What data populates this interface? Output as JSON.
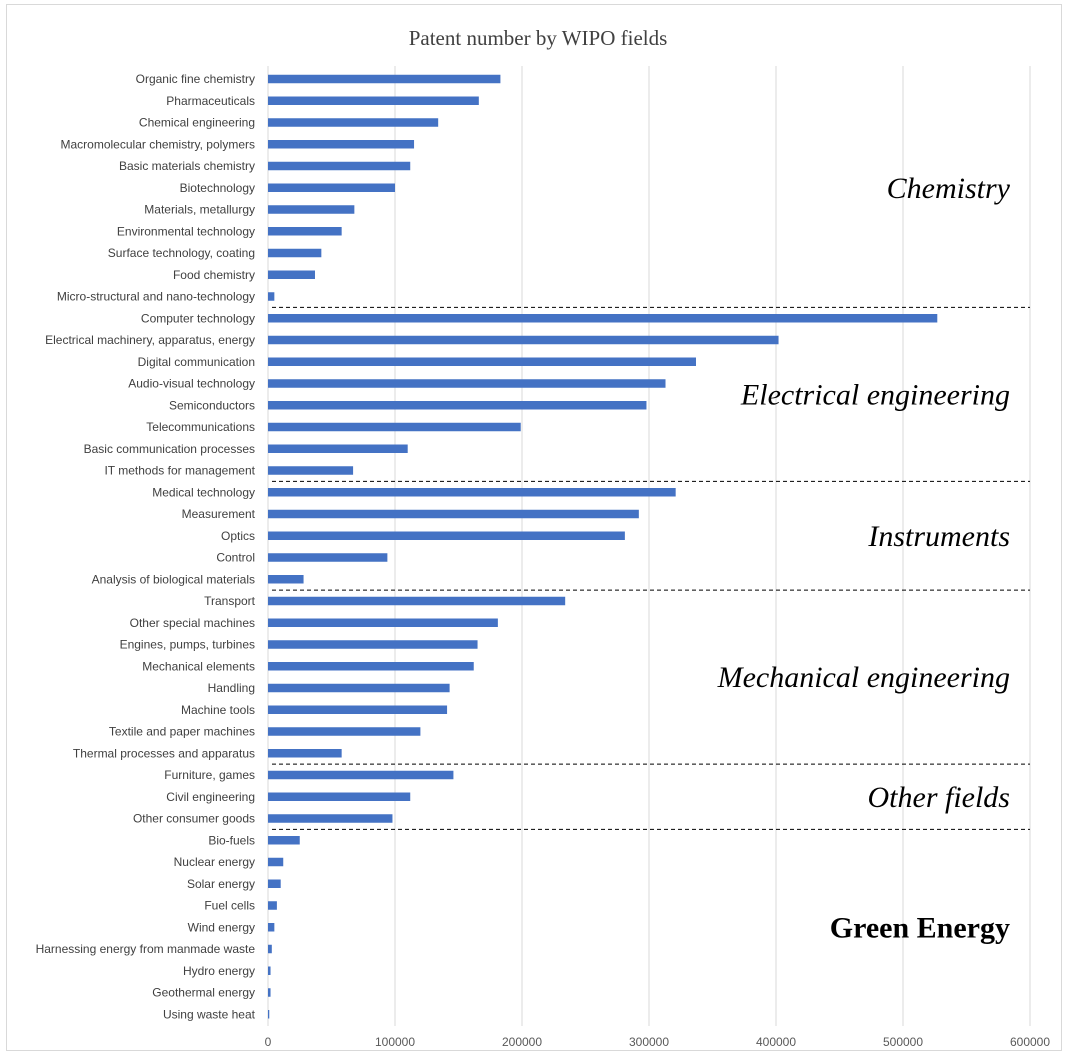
{
  "chart_data": {
    "type": "bar",
    "orientation": "horizontal",
    "title": "Patent number by WIPO fields",
    "xlim": [
      0,
      600000
    ],
    "x_ticks": [
      "0",
      "100000",
      "200000",
      "300000",
      "400000",
      "500000",
      "600000"
    ],
    "grid": "vertical",
    "bar_color": "#4472c4",
    "categories": [
      "Organic fine chemistry",
      "Pharmaceuticals",
      "Chemical engineering",
      "Macromolecular chemistry, polymers",
      "Basic materials chemistry",
      "Biotechnology",
      "Materials, metallurgy",
      "Environmental technology",
      "Surface technology, coating",
      "Food chemistry",
      "Micro-structural and nano-technology",
      "Computer technology",
      "Electrical machinery, apparatus, energy",
      "Digital communication",
      "Audio-visual technology",
      "Semiconductors",
      "Telecommunications",
      "Basic communication processes",
      "IT methods for management",
      "Medical technology",
      "Measurement",
      "Optics",
      "Control",
      "Analysis of biological materials",
      "Transport",
      "Other special machines",
      "Engines, pumps, turbines",
      "Mechanical elements",
      "Handling",
      "Machine tools",
      "Textile and paper machines",
      "Thermal processes and apparatus",
      "Furniture, games",
      "Civil engineering",
      "Other consumer goods",
      "Bio-fuels",
      "Nuclear energy",
      "Solar energy",
      "Fuel cells",
      "Wind energy",
      "Harnessing energy from manmade waste",
      "Hydro energy",
      "Geothermal energy",
      "Using waste heat"
    ],
    "values": [
      183000,
      166000,
      134000,
      115000,
      112000,
      100000,
      68000,
      58000,
      42000,
      37000,
      5000,
      527000,
      402000,
      337000,
      313000,
      298000,
      199000,
      110000,
      67000,
      321000,
      292000,
      281000,
      94000,
      28000,
      234000,
      181000,
      165000,
      162000,
      143000,
      141000,
      120000,
      58000,
      146000,
      112000,
      98000,
      25000,
      12000,
      10000,
      7000,
      5000,
      3000,
      2000,
      2000,
      1000
    ],
    "groups": [
      {
        "label": "Chemistry",
        "first": 0,
        "last": 10,
        "style": "italic"
      },
      {
        "label": "Electrical engineering",
        "first": 11,
        "last": 18,
        "style": "italic"
      },
      {
        "label": "Instruments",
        "first": 19,
        "last": 23,
        "style": "italic"
      },
      {
        "label": "Mechanical engineering",
        "first": 24,
        "last": 31,
        "style": "italic"
      },
      {
        "label": "Other fields",
        "first": 32,
        "last": 34,
        "style": "italic"
      },
      {
        "label": "Green Energy",
        "first": 35,
        "last": 43,
        "style": "bold"
      }
    ]
  }
}
